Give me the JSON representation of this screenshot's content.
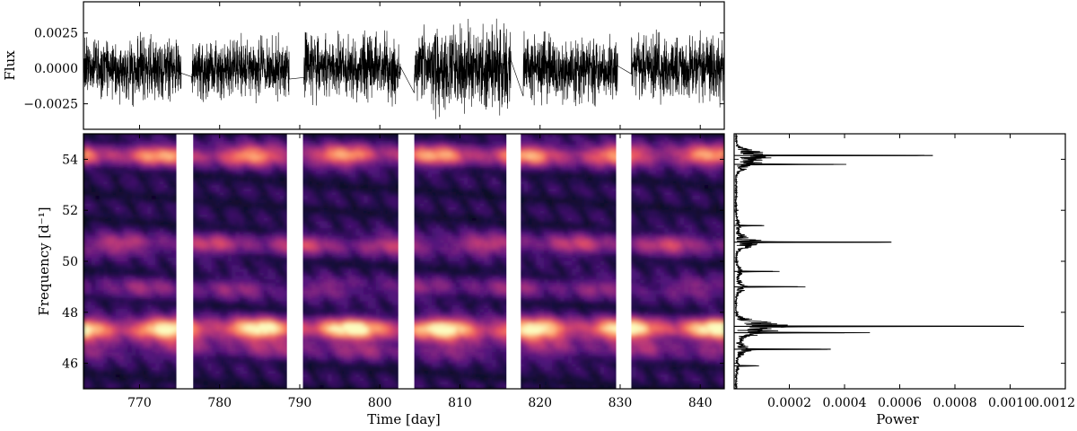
{
  "chart_data": [
    {
      "type": "line",
      "panel": "light-curve",
      "ylabel": "Flux",
      "xlim": [
        763,
        843
      ],
      "ylim": [
        -0.0043,
        0.0047
      ],
      "yticks": [
        -0.0025,
        0.0,
        0.0025
      ],
      "ytick_labels": [
        "−0.0025",
        "0.0000",
        "0.0025"
      ],
      "grid": false,
      "line_color": "#000000",
      "segments": [
        {
          "start": 763.0,
          "end": 775.2,
          "amplitude": 0.0027
        },
        {
          "start": 776.5,
          "end": 788.7,
          "amplitude": 0.0026
        },
        {
          "start": 790.5,
          "end": 802.6,
          "amplitude": 0.0027
        },
        {
          "start": 804.3,
          "end": 816.4,
          "amplitude": 0.0036
        },
        {
          "start": 817.9,
          "end": 829.7,
          "amplitude": 0.0028
        },
        {
          "start": 831.4,
          "end": 843.0,
          "amplitude": 0.0028
        }
      ]
    },
    {
      "type": "heatmap",
      "panel": "spectrogram",
      "xlabel": "Time [day]",
      "ylabel": "Frequency [d⁻¹]",
      "xlim": [
        763,
        843
      ],
      "ylim": [
        45,
        55
      ],
      "xticks": [
        770,
        780,
        790,
        800,
        810,
        820,
        830,
        840
      ],
      "xtick_labels": [
        "770",
        "780",
        "790",
        "800",
        "810",
        "820",
        "830",
        "840"
      ],
      "yticks": [
        46,
        48,
        50,
        52,
        54
      ],
      "ytick_labels": [
        "46",
        "48",
        "50",
        "52",
        "54"
      ],
      "colormap": "magma",
      "gaps": [
        [
          774.6,
          776.7
        ],
        [
          788.4,
          790.4
        ],
        [
          802.3,
          804.3
        ],
        [
          815.8,
          817.6
        ],
        [
          829.5,
          831.4
        ]
      ],
      "bands": [
        {
          "frequency": 47.35,
          "intensity": 0.95
        },
        {
          "frequency": 54.15,
          "intensity": 0.7
        },
        {
          "frequency": 50.65,
          "intensity": 0.42
        },
        {
          "frequency": 48.95,
          "intensity": 0.28
        },
        {
          "frequency": 46.55,
          "intensity": 0.3
        }
      ]
    },
    {
      "type": "line",
      "panel": "periodogram",
      "xlabel": "Power",
      "xlim": [
        0,
        0.0012
      ],
      "ylim": [
        45,
        55
      ],
      "xticks": [
        0.0002,
        0.0004,
        0.0006,
        0.0008,
        0.001,
        0.0012
      ],
      "xtick_labels": [
        "0.0002",
        "0.0004",
        "0.0006",
        "0.0008",
        "0.0010",
        "0.0012"
      ],
      "peaks": [
        {
          "frequency": 54.15,
          "power": 0.00072
        },
        {
          "frequency": 53.8,
          "power": 0.00036
        },
        {
          "frequency": 51.4,
          "power": 0.0001
        },
        {
          "frequency": 50.75,
          "power": 0.00057
        },
        {
          "frequency": 49.6,
          "power": 0.00014
        },
        {
          "frequency": 49.0,
          "power": 0.00023
        },
        {
          "frequency": 47.45,
          "power": 0.00105
        },
        {
          "frequency": 47.2,
          "power": 0.0004
        },
        {
          "frequency": 46.55,
          "power": 0.00035
        },
        {
          "frequency": 45.9,
          "power": 8e-05
        }
      ]
    }
  ]
}
